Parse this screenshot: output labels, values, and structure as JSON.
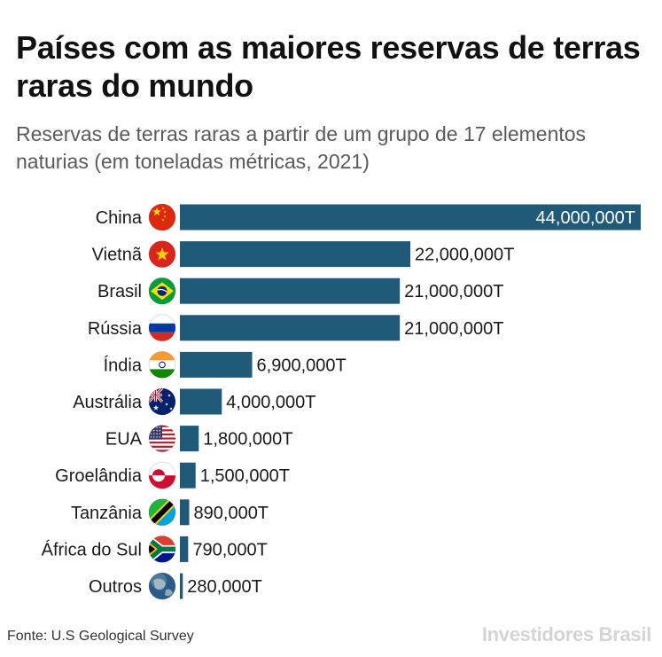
{
  "header": {
    "title": "Países com as maiores reservas de terras raras do mundo",
    "subtitle": "Reservas de terras raras a partir de um grupo de 17 elementos naturias (em toneladas métricas, 2021)"
  },
  "footer": {
    "source": "Fonte: U.S Geological Survey",
    "brand": "Investidores Brasil"
  },
  "colors": {
    "bar": "#205a78",
    "text": "#1a1a1a",
    "subtitle": "#5a5a5a"
  },
  "chart_data": {
    "type": "bar",
    "orientation": "horizontal",
    "title": "Países com as maiores reservas de terras raras do mundo",
    "subtitle": "Reservas de terras raras a partir de um grupo de 17 elementos naturias (em toneladas métricas, 2021)",
    "xlabel": "",
    "ylabel": "",
    "grid": false,
    "legend": "none",
    "xlim": [
      0,
      44000000
    ],
    "categories": [
      "China",
      "Vietnã",
      "Brasil",
      "Rússia",
      "Índia",
      "Austrália",
      "EUA",
      "Groelândia",
      "Tanzânia",
      "África do Sul",
      "Outros"
    ],
    "flag_icons": [
      "china-flag-icon",
      "vietnam-flag-icon",
      "brazil-flag-icon",
      "russia-flag-icon",
      "india-flag-icon",
      "australia-flag-icon",
      "usa-flag-icon",
      "greenland-flag-icon",
      "tanzania-flag-icon",
      "south-africa-flag-icon",
      "globe-icon"
    ],
    "values": [
      44000000,
      22000000,
      21000000,
      21000000,
      6900000,
      4000000,
      1800000,
      1500000,
      890000,
      790000,
      280000
    ],
    "value_labels": [
      "44,000,000T",
      "22,000,000T",
      "21,000,000T",
      "21,000,000T",
      "6,900,000T",
      "4,000,000T",
      "1,800,000T",
      "1,500,000T",
      "890,000T",
      "790,000T",
      "280,000T"
    ]
  }
}
